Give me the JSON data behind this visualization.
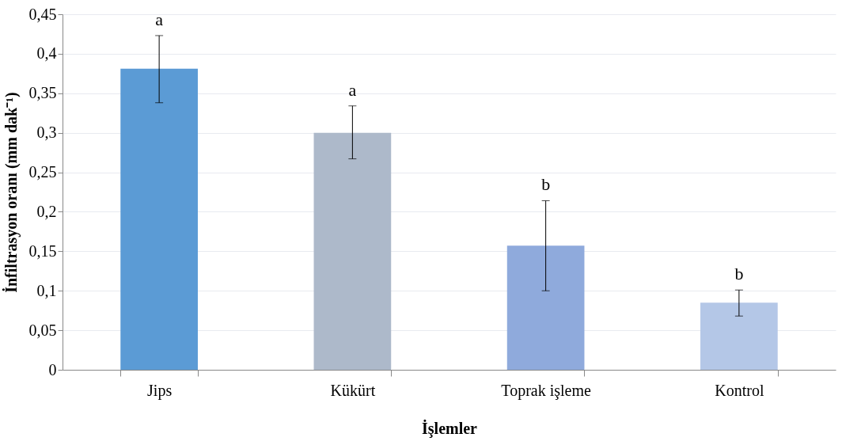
{
  "chart_data": {
    "type": "bar",
    "xlabel": "İşlemler",
    "ylabel": "İnfiltrasyon oranı (mm dak⁻¹)",
    "categories": [
      "Jips",
      "Kükürt",
      "Toprak işleme",
      "Kontrol"
    ],
    "values": [
      0.381,
      0.3,
      0.157,
      0.085
    ],
    "colors": [
      "#5b9bd5",
      "#adb9ca",
      "#8faadc",
      "#b4c7e7"
    ],
    "errors": [
      [
        0.338,
        0.423
      ],
      [
        0.267,
        0.334
      ],
      [
        0.1,
        0.214
      ],
      [
        0.068,
        0.101
      ]
    ],
    "ylim": [
      0,
      0.45
    ],
    "yticks": [
      0,
      {
        "value": 0.05,
        "label": "0,05"
      },
      {
        "value": 0.1,
        "label": "0,1"
      },
      {
        "value": 0.15,
        "label": "0,15"
      },
      {
        "value": 0.2,
        "label": "0,2"
      },
      {
        "value": 0.25,
        "label": "0,25"
      },
      {
        "value": 0.3,
        "label": "0,3"
      },
      {
        "value": 0.35,
        "label": "0,35"
      },
      {
        "value": 0.4,
        "label": "0,4"
      },
      {
        "value": 0.45,
        "label": "0,45"
      }
    ],
    "grid": "y",
    "annotations": [
      "a",
      "a",
      "b",
      "b"
    ]
  }
}
